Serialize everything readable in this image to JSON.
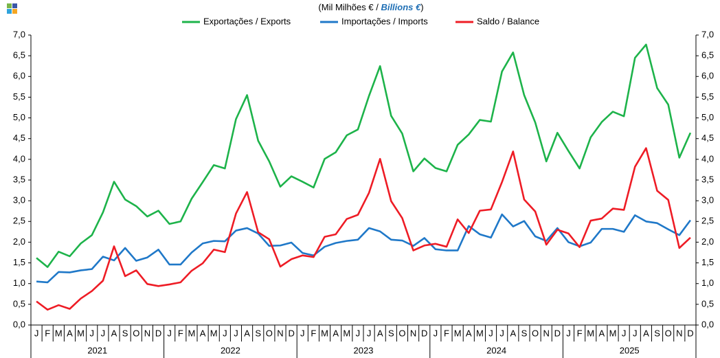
{
  "chart_data": {
    "type": "line",
    "title_parts": [
      "(Mil Milhões  € / ",
      "Billions €",
      ")"
    ],
    "categories": [
      "J",
      "F",
      "M",
      "A",
      "M",
      "J",
      "J",
      "A",
      "S",
      "O",
      "N",
      "D",
      "J",
      "F",
      "M",
      "A",
      "M",
      "J",
      "J",
      "A",
      "S",
      "O",
      "N",
      "D",
      "J",
      "F",
      "M",
      "A",
      "M",
      "J",
      "J",
      "A",
      "S",
      "O",
      "N",
      "D",
      "J",
      "F",
      "M",
      "A",
      "M",
      "J",
      "J",
      "A",
      "S",
      "O",
      "N",
      "D",
      "J",
      "F",
      "M",
      "A",
      "M",
      "J",
      "J",
      "A",
      "S",
      "O",
      "N",
      "D"
    ],
    "years": [
      "2021",
      "2022",
      "2023",
      "2024",
      "2025"
    ],
    "series": [
      {
        "name": "Exportações / Exports",
        "color": "#1db34a",
        "values": [
          1.62,
          1.4,
          1.77,
          1.66,
          1.97,
          2.17,
          2.72,
          3.46,
          3.03,
          2.87,
          2.62,
          2.76,
          2.44,
          2.5,
          3.05,
          3.45,
          3.86,
          3.78,
          4.97,
          5.55,
          4.45,
          3.95,
          3.34,
          3.59,
          3.46,
          3.32,
          4.01,
          4.17,
          4.58,
          4.72,
          5.53,
          6.25,
          5.05,
          4.62,
          3.71,
          4.02,
          3.79,
          3.71,
          4.35,
          4.6,
          4.95,
          4.91,
          6.12,
          6.58,
          5.55,
          4.89,
          3.95,
          4.64,
          4.2,
          3.78,
          4.53,
          4.9,
          5.15,
          5.04,
          6.45,
          6.77,
          5.72,
          5.32,
          4.04,
          4.64
        ]
      },
      {
        "name": "Importações / Imports",
        "color": "#1f78c8",
        "values": [
          1.05,
          1.03,
          1.28,
          1.27,
          1.32,
          1.35,
          1.65,
          1.56,
          1.86,
          1.55,
          1.63,
          1.82,
          1.46,
          1.46,
          1.75,
          1.97,
          2.03,
          2.02,
          2.28,
          2.34,
          2.21,
          1.91,
          1.92,
          1.99,
          1.74,
          1.68,
          1.89,
          1.98,
          2.03,
          2.06,
          2.34,
          2.26,
          2.06,
          2.04,
          1.91,
          2.1,
          1.83,
          1.8,
          1.8,
          2.39,
          2.19,
          2.11,
          2.67,
          2.38,
          2.51,
          2.14,
          2.03,
          2.34,
          2.0,
          1.9,
          1.99,
          2.32,
          2.32,
          2.25,
          2.65,
          2.5,
          2.46,
          2.31,
          2.17,
          2.53
        ]
      },
      {
        "name": "Saldo / Balance",
        "color": "#ee1c25",
        "values": [
          0.57,
          0.37,
          0.48,
          0.39,
          0.64,
          0.82,
          1.07,
          1.9,
          1.18,
          1.32,
          0.99,
          0.94,
          0.98,
          1.03,
          1.31,
          1.49,
          1.82,
          1.76,
          2.69,
          3.21,
          2.24,
          2.07,
          1.41,
          1.59,
          1.68,
          1.64,
          2.13,
          2.19,
          2.56,
          2.66,
          3.19,
          4.01,
          2.99,
          2.58,
          1.8,
          1.92,
          1.96,
          1.89,
          2.55,
          2.22,
          2.76,
          2.79,
          3.45,
          4.19,
          3.03,
          2.74,
          1.94,
          2.3,
          2.21,
          1.88,
          2.52,
          2.57,
          2.81,
          2.78,
          3.82,
          4.27,
          3.24,
          3.02,
          1.86,
          2.11
        ]
      }
    ],
    "ylim": [
      0,
      7
    ],
    "yticks": [
      {
        "value": 0,
        "label": "0,0"
      },
      {
        "value": 0.5,
        "label": "0,5"
      },
      {
        "value": 1,
        "label": "1,0"
      },
      {
        "value": 1.5,
        "label": "1,5"
      },
      {
        "value": 2,
        "label": "2,0"
      },
      {
        "value": 2.5,
        "label": "2,5"
      },
      {
        "value": 3,
        "label": "3,0"
      },
      {
        "value": 3.5,
        "label": "3,5"
      },
      {
        "value": 4,
        "label": "4,0"
      },
      {
        "value": 4.5,
        "label": "4,5"
      },
      {
        "value": 5,
        "label": "5,0"
      },
      {
        "value": 5.5,
        "label": "5,5"
      },
      {
        "value": 6,
        "label": "6,0"
      },
      {
        "value": 6.5,
        "label": "6,5"
      },
      {
        "value": 7,
        "label": "7,0"
      }
    ],
    "grid": false
  }
}
